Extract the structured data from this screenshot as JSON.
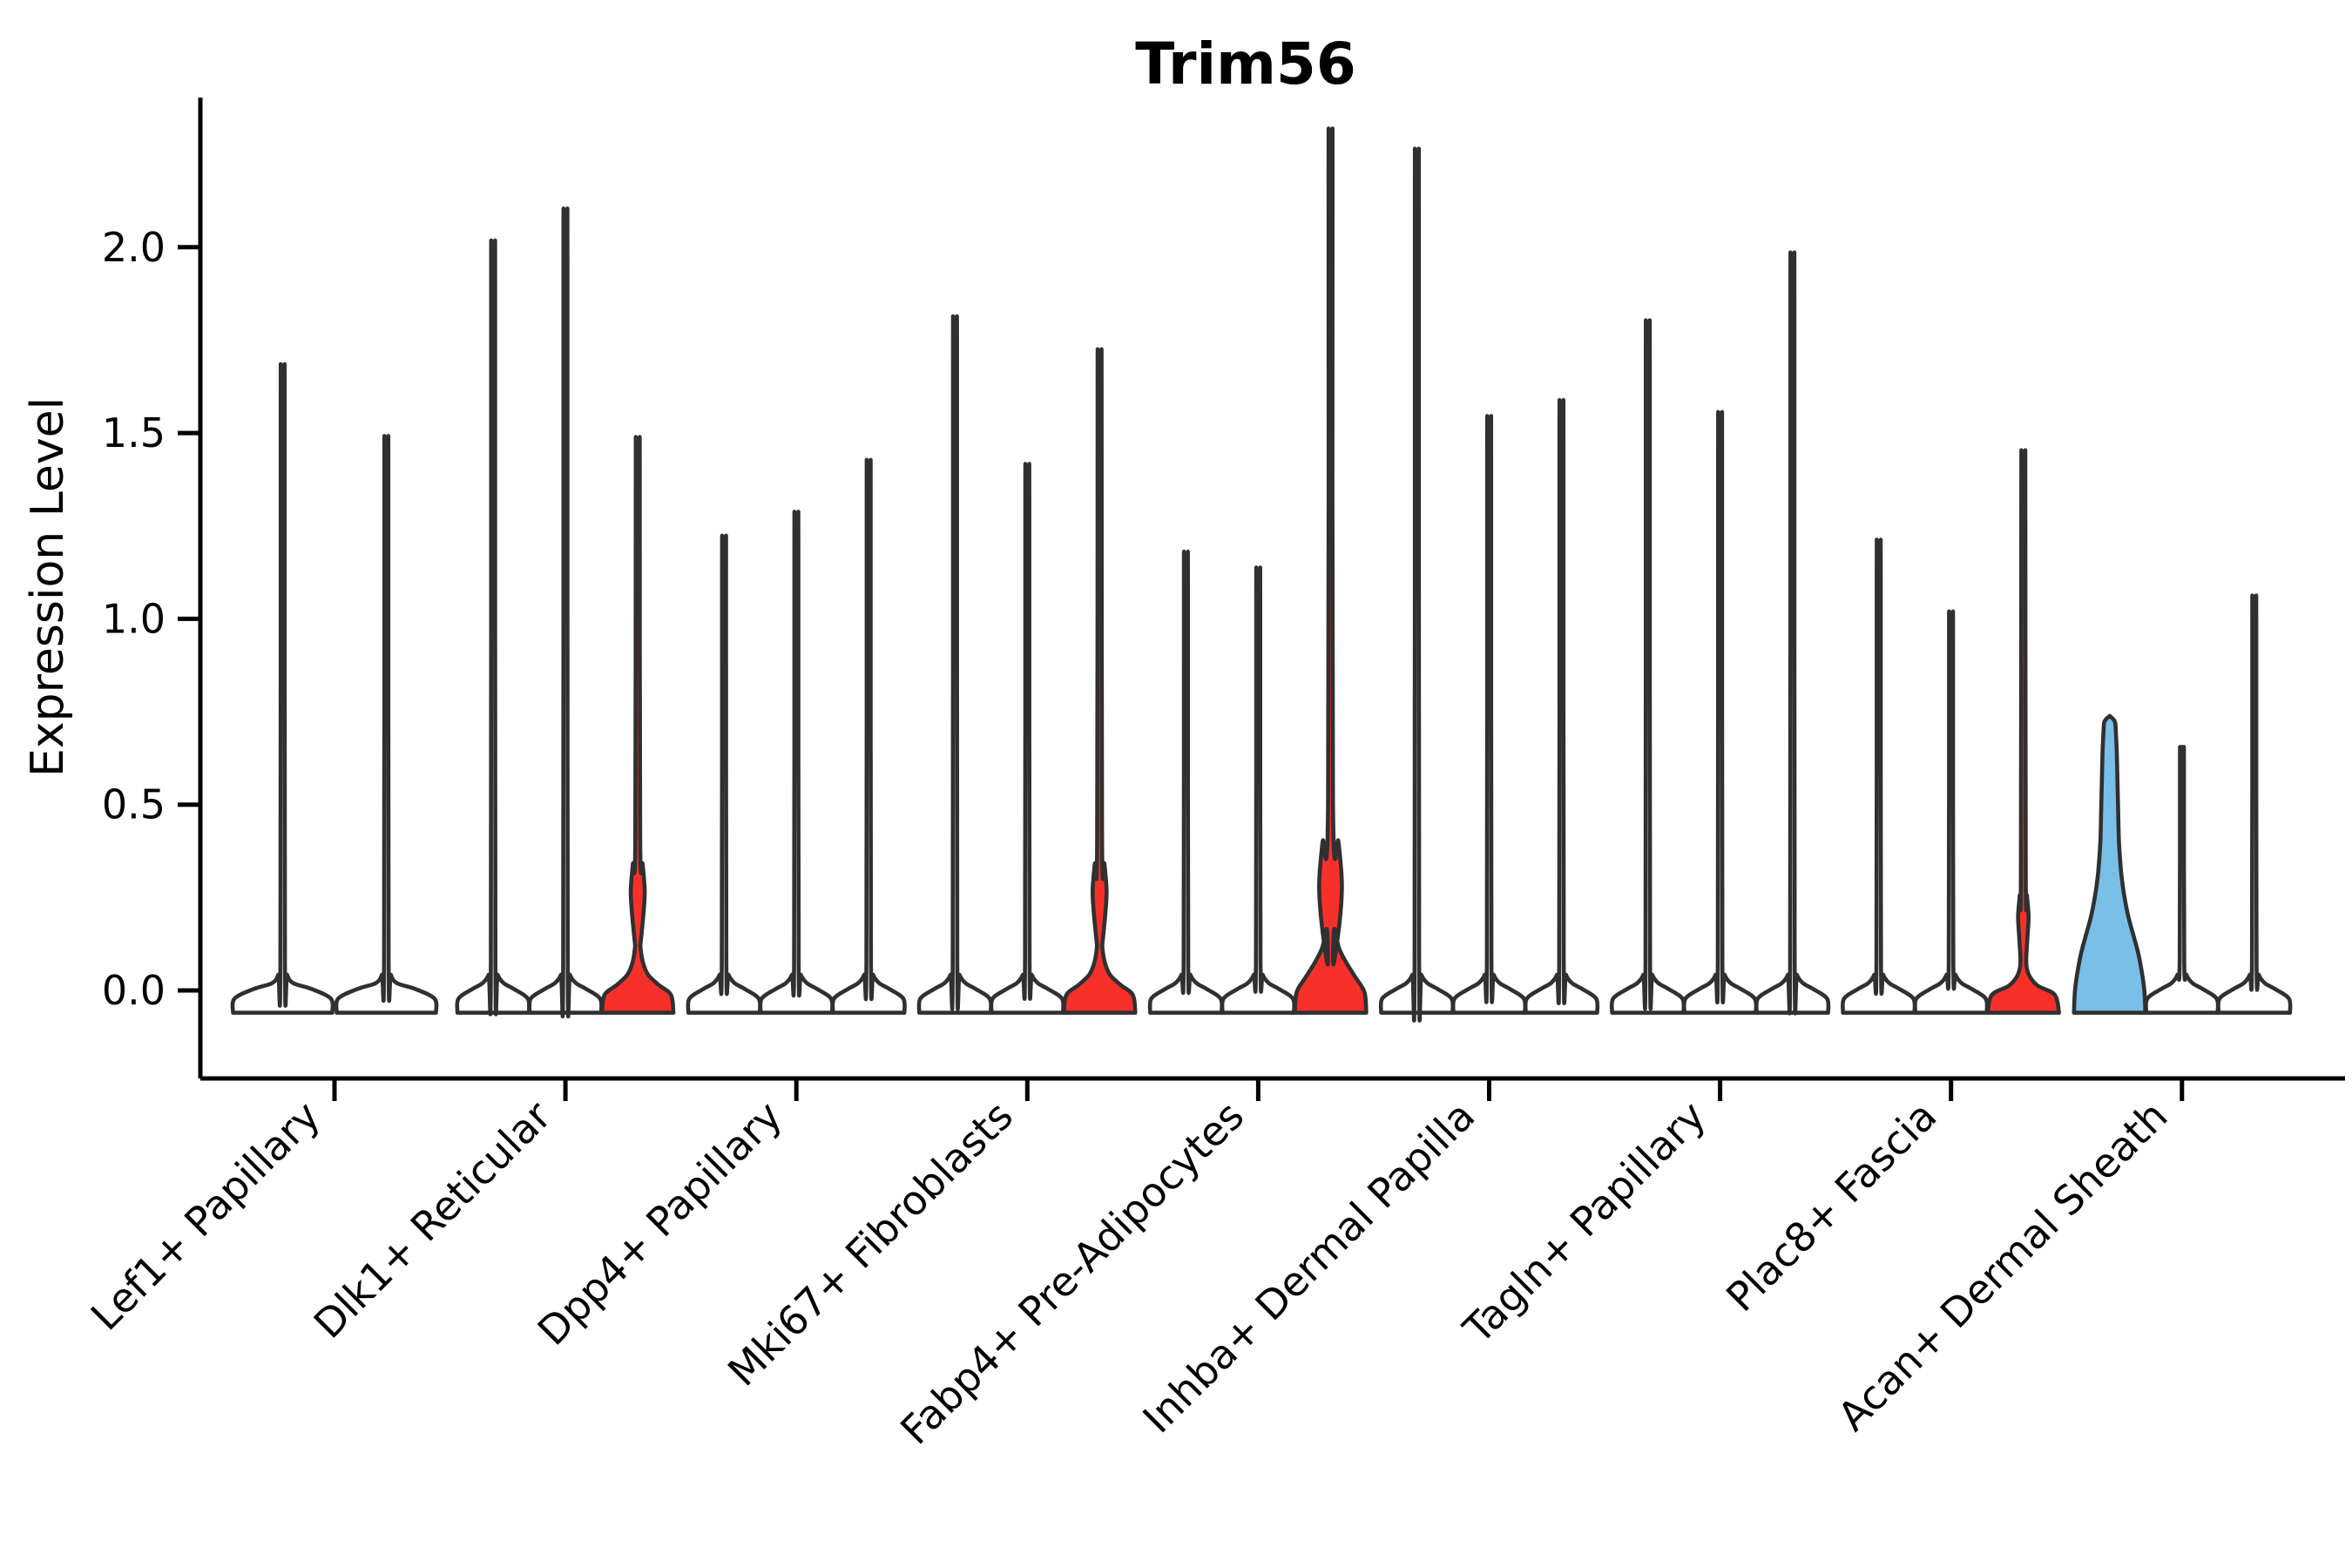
{
  "title": "Trim56",
  "y_axis": {
    "label": "Expression Level",
    "tick_labels": [
      "0.0",
      "0.5",
      "1.0",
      "1.5",
      "2.0"
    ],
    "tick_values": [
      0.0,
      0.5,
      1.0,
      1.5,
      2.0
    ]
  },
  "colors": {
    "red": "#F8302A",
    "blue": "#7ABFE8",
    "outline": "#303030",
    "axis": "#000000",
    "background": "#FFFFFF"
  },
  "chart_data": {
    "type": "violin",
    "title": "Trim56",
    "xlabel": "",
    "ylabel": "Expression Level",
    "ytick_labels": [
      "0.0",
      "0.5",
      "1.0",
      "1.5",
      "2.0"
    ],
    "yticks": [
      0.0,
      0.5,
      1.0,
      1.5,
      2.0
    ],
    "ylim": [
      -0.07,
      2.36
    ],
    "grid": false,
    "legend": "none",
    "categories": [
      "Lef1+ Papillary",
      "Dlk1+ Reticular",
      "Dpp4+ Papillary",
      "Mki67+ Fibroblasts",
      "Fabp4+ Pre-Adipocytes",
      "Inhba+ Dermal Papilla",
      "Tagln+ Papillary",
      "Plac8+ Fascia",
      "Acan+ Dermal Sheath"
    ],
    "groups": [
      {
        "category": "Lef1+ Papillary",
        "violins": [
          {
            "max": 1.6,
            "fill": "white",
            "shape": "spike"
          },
          {
            "max": 1.42,
            "fill": "white",
            "shape": "spike"
          }
        ]
      },
      {
        "category": "Dlk1+ Reticular",
        "violins": [
          {
            "max": 1.91,
            "fill": "white",
            "shape": "spike"
          },
          {
            "max": 1.99,
            "fill": "white",
            "shape": "spike"
          },
          {
            "max": 1.44,
            "fill": "red",
            "shape": "spike-bulge",
            "base": "mid",
            "bulge": {
              "center": 0.27,
              "span": 0.14,
              "width": 8
            }
          }
        ]
      },
      {
        "category": "Dpp4+ Papillary",
        "violins": [
          {
            "max": 1.17,
            "fill": "white",
            "shape": "spike"
          },
          {
            "max": 1.23,
            "fill": "white",
            "shape": "spike"
          },
          {
            "max": 1.36,
            "fill": "white",
            "shape": "spike"
          }
        ]
      },
      {
        "category": "Mki67+ Fibroblasts",
        "violins": [
          {
            "max": 1.72,
            "fill": "white",
            "shape": "spike"
          },
          {
            "max": 1.35,
            "fill": "white",
            "shape": "spike"
          },
          {
            "max": 1.66,
            "fill": "red",
            "shape": "spike-bulge",
            "base": "mid",
            "bulge": {
              "center": 0.27,
              "span": 0.14,
              "width": 8
            }
          }
        ]
      },
      {
        "category": "Fabp4+ Pre-Adipocytes",
        "violins": [
          {
            "max": 1.13,
            "fill": "white",
            "shape": "spike"
          },
          {
            "max": 1.09,
            "fill": "white",
            "shape": "spike"
          },
          {
            "max": 2.22,
            "fill": "red",
            "shape": "spike-bulge",
            "base": "big",
            "bulge": {
              "center": 0.29,
              "span": 0.22,
              "width": 13
            }
          }
        ]
      },
      {
        "category": "Inhba+ Dermal Papilla",
        "violins": [
          {
            "max": 2.14,
            "fill": "white",
            "shape": "spike"
          },
          {
            "max": 1.47,
            "fill": "white",
            "shape": "spike"
          },
          {
            "max": 1.51,
            "fill": "white",
            "shape": "spike"
          }
        ]
      },
      {
        "category": "Tagln+ Papillary",
        "violins": [
          {
            "max": 1.71,
            "fill": "white",
            "shape": "spike"
          },
          {
            "max": 1.48,
            "fill": "white",
            "shape": "spike"
          },
          {
            "max": 1.88,
            "fill": "white",
            "shape": "spike"
          }
        ]
      },
      {
        "category": "Plac8+ Fascia",
        "violins": [
          {
            "max": 1.16,
            "fill": "white",
            "shape": "spike"
          },
          {
            "max": 0.98,
            "fill": "white",
            "shape": "spike"
          },
          {
            "max": 1.4,
            "fill": "red",
            "shape": "spike-bulge",
            "base": "small",
            "bulge": {
              "center": 0.2,
              "span": 0.11,
              "width": 6
            }
          }
        ]
      },
      {
        "category": "Acan+ Dermal Sheath",
        "violins": [
          {
            "max": 0.72,
            "fill": "blue",
            "shape": "funnel"
          },
          {
            "max": 0.64,
            "fill": "white",
            "shape": "spike"
          },
          {
            "max": 1.02,
            "fill": "white",
            "shape": "spike"
          }
        ]
      }
    ]
  }
}
